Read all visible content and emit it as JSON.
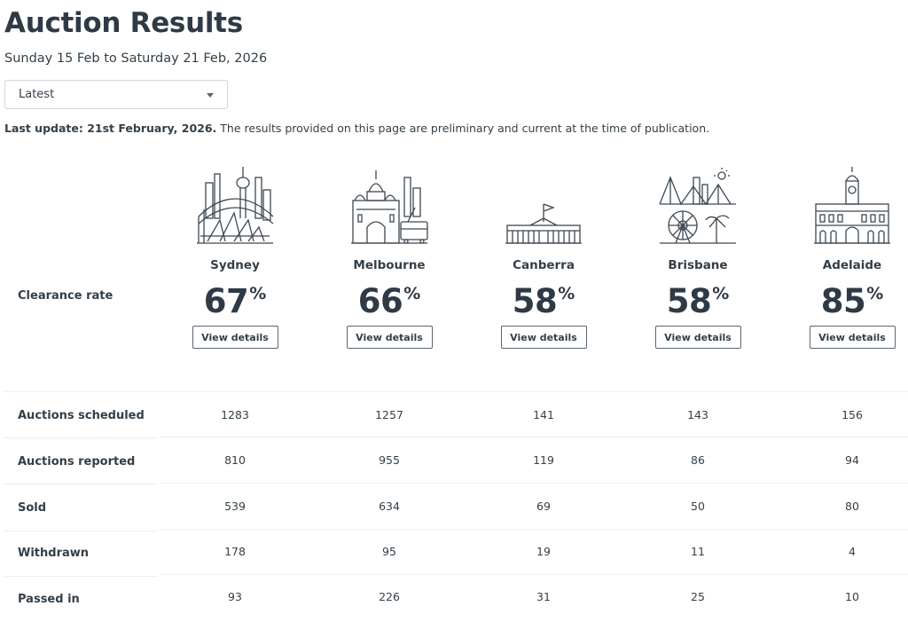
{
  "header": {
    "title": "Auction Results",
    "date_range": "Sunday 15 Feb to Saturday 21 Feb, 2026"
  },
  "period_select": {
    "value": "Latest"
  },
  "update": {
    "bold": "Last update: 21st February, 2026.",
    "text": " The results provided on this page are preliminary and current at the time of publication."
  },
  "clearance": {
    "label": "Clearance rate",
    "pct_symbol": "%",
    "button_label": "View details"
  },
  "cities": [
    {
      "name": "Sydney",
      "rate": "67",
      "icon": "sydney-skyline-icon"
    },
    {
      "name": "Melbourne",
      "rate": "66",
      "icon": "melbourne-skyline-icon"
    },
    {
      "name": "Canberra",
      "rate": "58",
      "icon": "canberra-skyline-icon"
    },
    {
      "name": "Brisbane",
      "rate": "58",
      "icon": "brisbane-skyline-icon"
    },
    {
      "name": "Adelaide",
      "rate": "85",
      "icon": "adelaide-skyline-icon"
    }
  ],
  "stats": [
    {
      "label": "Auctions scheduled",
      "values": [
        "1283",
        "1257",
        "141",
        "143",
        "156"
      ]
    },
    {
      "label": "Auctions reported",
      "values": [
        "810",
        "955",
        "119",
        "86",
        "94"
      ]
    },
    {
      "label": "Sold",
      "values": [
        "539",
        "634",
        "69",
        "50",
        "80"
      ]
    },
    {
      "label": "Withdrawn",
      "values": [
        "178",
        "95",
        "19",
        "11",
        "4"
      ]
    },
    {
      "label": "Passed in",
      "values": [
        "93",
        "226",
        "31",
        "25",
        "10"
      ]
    }
  ],
  "colors": {
    "text": "#333f48",
    "heading": "#2f3a46",
    "border": "#d2d5d9",
    "divider": "#eceef0"
  }
}
